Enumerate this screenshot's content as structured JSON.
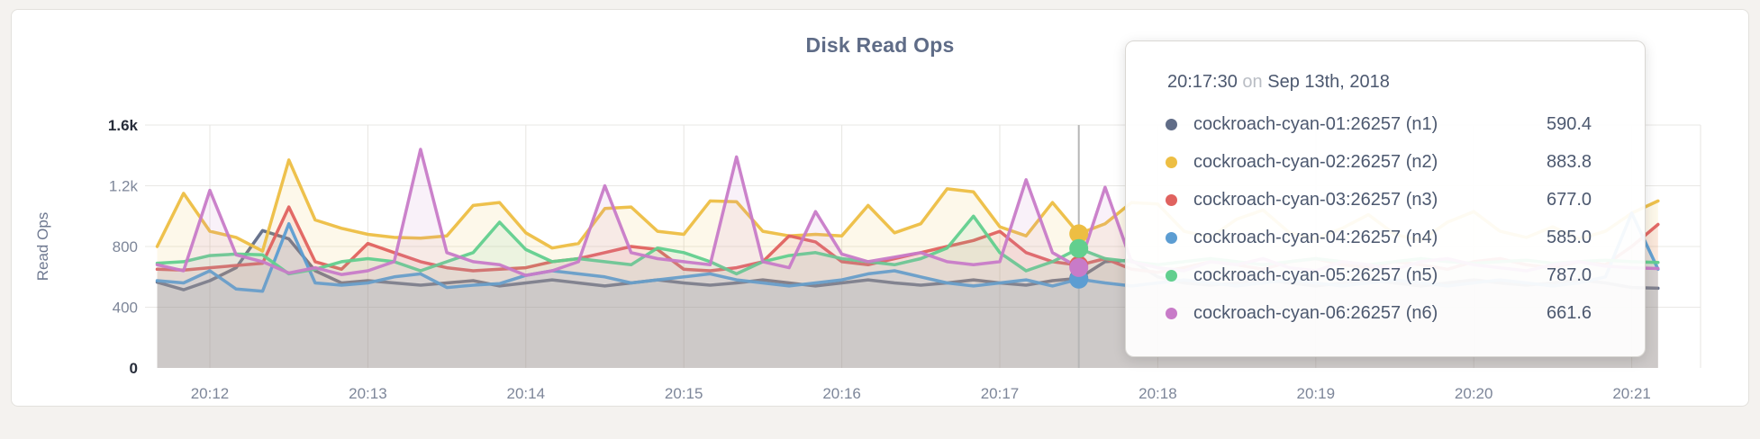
{
  "card": {
    "title": "Disk Read Ops"
  },
  "tooltip": {
    "time": "20:17:30",
    "conjunction": "on",
    "date": "Sep 13th, 2018",
    "rows": [
      {
        "label": "cockroach-cyan-01:26257 (n1)",
        "value": "590.4",
        "color": "#606C87"
      },
      {
        "label": "cockroach-cyan-02:26257 (n2)",
        "value": "883.8",
        "color": "#EDBE43"
      },
      {
        "label": "cockroach-cyan-03:26257 (n3)",
        "value": "677.0",
        "color": "#E0625F"
      },
      {
        "label": "cockroach-cyan-04:26257 (n4)",
        "value": "585.0",
        "color": "#5C9DD2"
      },
      {
        "label": "cockroach-cyan-05:26257 (n5)",
        "value": "787.0",
        "color": "#62CF8E"
      },
      {
        "label": "cockroach-cyan-06:26257 (n6)",
        "value": "661.6",
        "color": "#C87BC8"
      }
    ]
  },
  "chart_data": {
    "type": "line",
    "title": "Disk Read Ops",
    "ylabel": "Read Ops",
    "ylim": [
      0,
      1600
    ],
    "grid": true,
    "legend_position": "tooltip",
    "x_start": "20:11:40",
    "x_interval_seconds": 10,
    "x_tick_labels": [
      "20:12",
      "20:13",
      "20:14",
      "20:15",
      "20:16",
      "20:17",
      "20:18",
      "20:19",
      "20:20",
      "20:21"
    ],
    "y_ticks": [
      {
        "label": "0",
        "value": 0,
        "emph": true
      },
      {
        "label": "400",
        "value": 400,
        "emph": false
      },
      {
        "label": "800",
        "value": 800,
        "emph": false
      },
      {
        "label": "1.2k",
        "value": 1200,
        "emph": false
      },
      {
        "label": "1.6k",
        "value": 1600,
        "emph": true
      }
    ],
    "y_grid_values": [
      400,
      800,
      1200,
      1600
    ],
    "hover": {
      "index": 35,
      "time": "20:17:30",
      "date": "Sep 13th, 2018"
    },
    "series": [
      {
        "name": "cockroach-cyan-01:26257 (n1)",
        "color": "#606C87",
        "hover_value": 590.4,
        "values": [
          565,
          515,
          575,
          660,
          905,
          850,
          640,
          560,
          575,
          560,
          545,
          560,
          575,
          540,
          560,
          580,
          560,
          540,
          560,
          580,
          560,
          545,
          560,
          580,
          560,
          540,
          560,
          580,
          560,
          545,
          560,
          580,
          560,
          545,
          575,
          590.4,
          700,
          710,
          600,
          560,
          545,
          560,
          580,
          560,
          540,
          560,
          580,
          560,
          540,
          560,
          580,
          560,
          545,
          560,
          580,
          560,
          530,
          525
        ]
      },
      {
        "name": "cockroach-cyan-02:26257 (n2)",
        "color": "#EDBE43",
        "hover_value": 883.8,
        "values": [
          800,
          1150,
          900,
          860,
          770,
          1370,
          975,
          920,
          880,
          860,
          855,
          870,
          1070,
          1090,
          890,
          790,
          820,
          1050,
          1060,
          900,
          880,
          1100,
          1095,
          900,
          870,
          880,
          870,
          1070,
          890,
          950,
          1180,
          1160,
          930,
          870,
          1090,
          883.8,
          950,
          1090,
          1080,
          900,
          860,
          980,
          1040,
          890,
          850,
          920,
          1010,
          880,
          840,
          960,
          1030,
          900,
          860,
          930,
          850,
          900,
          1020,
          1100
        ]
      },
      {
        "name": "cockroach-cyan-03:26257 (n3)",
        "color": "#E0625F",
        "hover_value": 677.0,
        "values": [
          650,
          645,
          660,
          675,
          690,
          1060,
          700,
          650,
          820,
          760,
          700,
          660,
          640,
          650,
          660,
          700,
          720,
          760,
          800,
          780,
          650,
          640,
          660,
          700,
          870,
          830,
          700,
          680,
          720,
          760,
          800,
          840,
          900,
          760,
          700,
          677,
          720,
          650,
          630,
          660,
          700,
          680,
          650,
          700,
          720,
          680,
          660,
          700,
          680,
          650,
          700,
          720,
          680,
          660,
          700,
          680,
          800,
          945
        ]
      },
      {
        "name": "cockroach-cyan-04:26257 (n4)",
        "color": "#5C9DD2",
        "hover_value": 585.0,
        "values": [
          575,
          560,
          640,
          520,
          505,
          950,
          560,
          545,
          560,
          600,
          620,
          530,
          545,
          555,
          610,
          640,
          620,
          600,
          560,
          580,
          600,
          620,
          580,
          560,
          540,
          560,
          580,
          620,
          640,
          600,
          560,
          540,
          560,
          580,
          540,
          585,
          560,
          540,
          560,
          580,
          560,
          540,
          560,
          580,
          560,
          540,
          560,
          580,
          560,
          540,
          560,
          580,
          560,
          540,
          560,
          600,
          1020,
          650
        ]
      },
      {
        "name": "cockroach-cyan-05:26257 (n5)",
        "color": "#62CF8E",
        "hover_value": 787.0,
        "values": [
          690,
          700,
          740,
          750,
          745,
          620,
          650,
          700,
          720,
          700,
          640,
          700,
          760,
          960,
          780,
          700,
          720,
          700,
          680,
          790,
          760,
          700,
          620,
          700,
          740,
          760,
          720,
          700,
          680,
          720,
          790,
          1000,
          760,
          640,
          700,
          787,
          720,
          700,
          680,
          700,
          720,
          700,
          680,
          700,
          720,
          700,
          680,
          700,
          720,
          700,
          690,
          700,
          710,
          690,
          700,
          710,
          700,
          695
        ]
      },
      {
        "name": "cockroach-cyan-06:26257 (n6)",
        "color": "#C87BC8",
        "hover_value": 661.6,
        "values": [
          680,
          640,
          1170,
          745,
          700,
          625,
          660,
          615,
          640,
          700,
          1440,
          760,
          700,
          680,
          610,
          640,
          700,
          1200,
          760,
          720,
          700,
          680,
          1390,
          700,
          660,
          1030,
          750,
          700,
          730,
          760,
          700,
          680,
          700,
          1240,
          760,
          661.6,
          1190,
          700,
          660,
          640,
          700,
          680,
          720,
          660,
          640,
          700,
          680,
          650,
          700,
          720,
          680,
          660,
          640,
          680,
          700,
          670,
          660,
          655
        ]
      }
    ]
  }
}
